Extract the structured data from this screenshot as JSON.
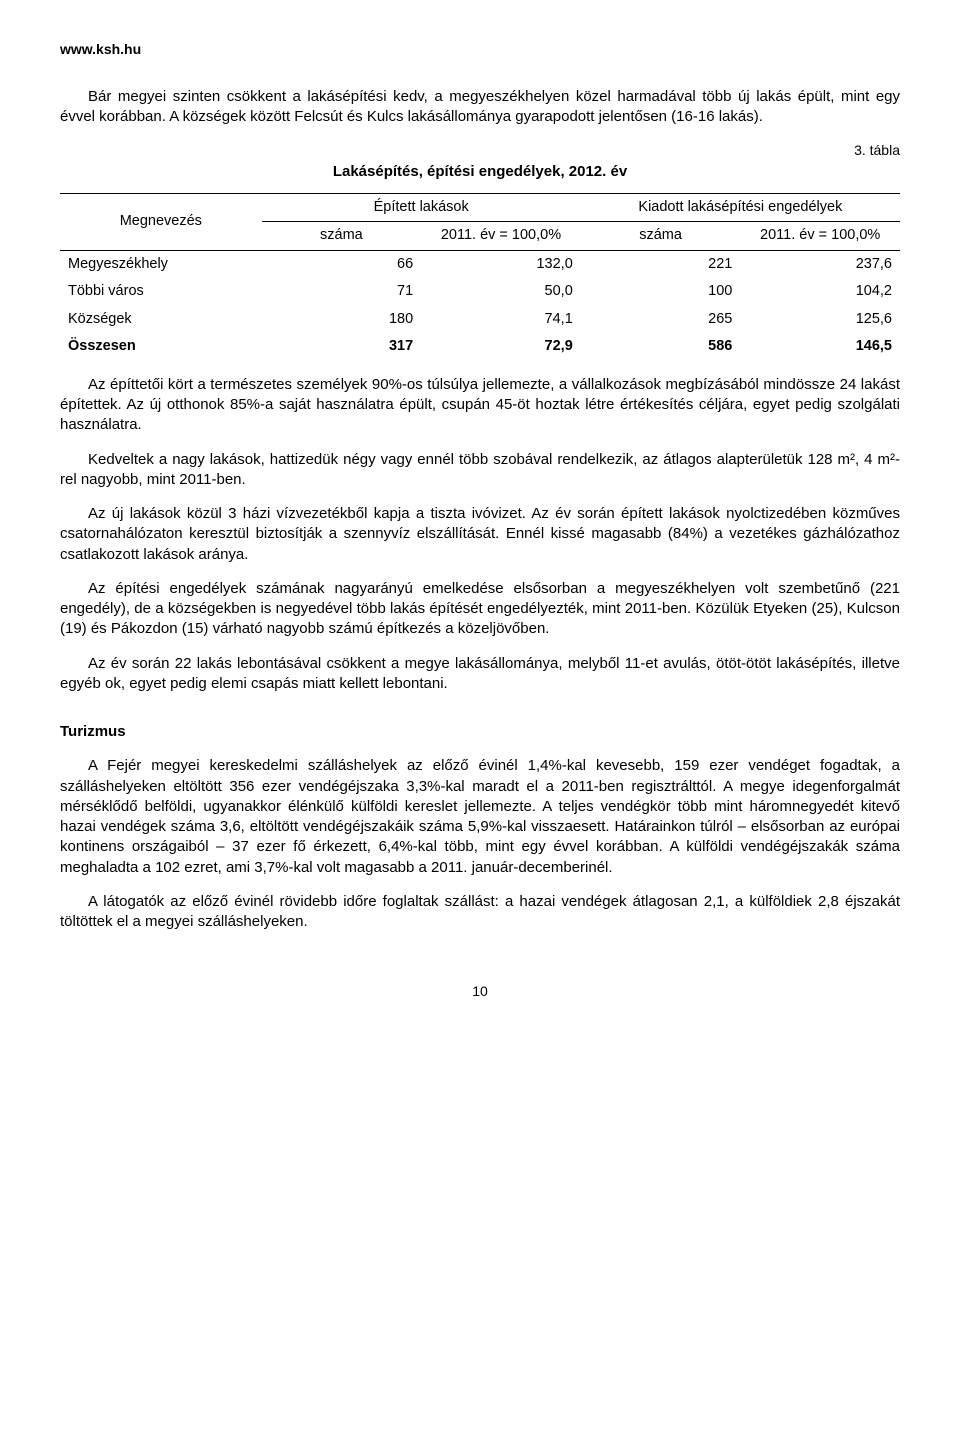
{
  "header": {
    "url": "www.ksh.hu"
  },
  "intro": {
    "p1": "Bár megyei szinten csökkent a lakásépítési kedv, a megyeszékhelyen közel harmadával több új lakás épült, mint egy évvel korábban. A községek között Felcsút és Kulcs lakásállománya gyarapodott jelentősen (16-16 lakás)."
  },
  "table3": {
    "label": "3. tábla",
    "title": "Lakásépítés, építési engedélyek, 2012. év",
    "col_rowhead": "Megnevezés",
    "group1": "Épített lakások",
    "group2": "Kiadott lakásépítési engedélyek",
    "sub_szama": "száma",
    "sub_pct": "2011. év = 100,0%",
    "rows": [
      {
        "label": "Megyeszékhely",
        "a": "66",
        "b": "132,0",
        "c": "221",
        "d": "237,6"
      },
      {
        "label": "Többi város",
        "a": "71",
        "b": "50,0",
        "c": "100",
        "d": "104,2"
      },
      {
        "label": "Községek",
        "a": "180",
        "b": "74,1",
        "c": "265",
        "d": "125,6"
      }
    ],
    "total": {
      "label": "Összesen",
      "a": "317",
      "b": "72,9",
      "c": "586",
      "d": "146,5"
    }
  },
  "body": {
    "p2": "Az építtetői kört a természetes személyek 90%-os túlsúlya jellemezte, a vállalkozások megbízásából mindössze 24 lakást építettek. Az új otthonok 85%-a saját használatra épült, csupán 45-öt hoztak létre értékesítés céljára, egyet pedig szolgálati használatra.",
    "p3": "Kedveltek a nagy lakások, hattizedük négy vagy ennél több szobával rendelkezik, az átlagos alapterületük 128 m², 4 m²-rel nagyobb, mint 2011-ben.",
    "p4": "Az új lakások közül 3 házi vízvezetékből kapja a tiszta ivóvizet. Az év során épített lakások nyolctizedében közműves csatornahálózaton keresztül biztosítják a szennyvíz elszállítását. Ennél kissé magasabb (84%) a vezetékes gázhálózathoz csatlakozott lakások aránya.",
    "p5": "Az építési engedélyek számának nagyarányú emelkedése elsősorban a megyeszékhelyen volt szembetűnő (221 engedély), de a községekben is negyedével több lakás építését engedélyezték, mint 2011-ben. Közülük Etyeken (25), Kulcson (19) és Pákozdon (15) várható nagyobb számú építkezés a közeljövőben.",
    "p6": "Az év során 22 lakás lebontásával csökkent a megye lakásállománya, melyből 11-et avulás, ötöt-ötöt lakásépítés, illetve egyéb ok, egyet pedig elemi csapás miatt kellett lebontani."
  },
  "turizmus": {
    "heading": "Turizmus",
    "p1": "A Fejér megyei kereskedelmi szálláshelyek az előző évinél 1,4%-kal kevesebb, 159 ezer vendéget fogadtak, a szálláshelyeken eltöltött 356 ezer vendégéjszaka 3,3%-kal maradt el a 2011-ben regisztrálttól. A megye idegenforgalmát mérséklődő belföldi, ugyanakkor élénkülő külföldi kereslet jellemezte. A teljes vendégkör több mint háromnegyedét kitevő hazai vendégek száma 3,6, eltöltött vendégéjszakáik száma 5,9%-kal visszaesett. Határainkon túlról – elsősorban az európai kontinens országaiból – 37 ezer fő érkezett, 6,4%-kal több, mint egy évvel korábban. A külföldi vendégéjszakák száma meghaladta a 102 ezret, ami 3,7%-kal volt magasabb a 2011. január-decemberinél.",
    "p2": "A látogatók az előző évinél rövidebb időre foglaltak szállást: a hazai vendégek átlagosan 2,1, a külföldiek 2,8 éjszakát töltöttek el a megyei szálláshelyeken."
  },
  "page": {
    "number": "10"
  }
}
